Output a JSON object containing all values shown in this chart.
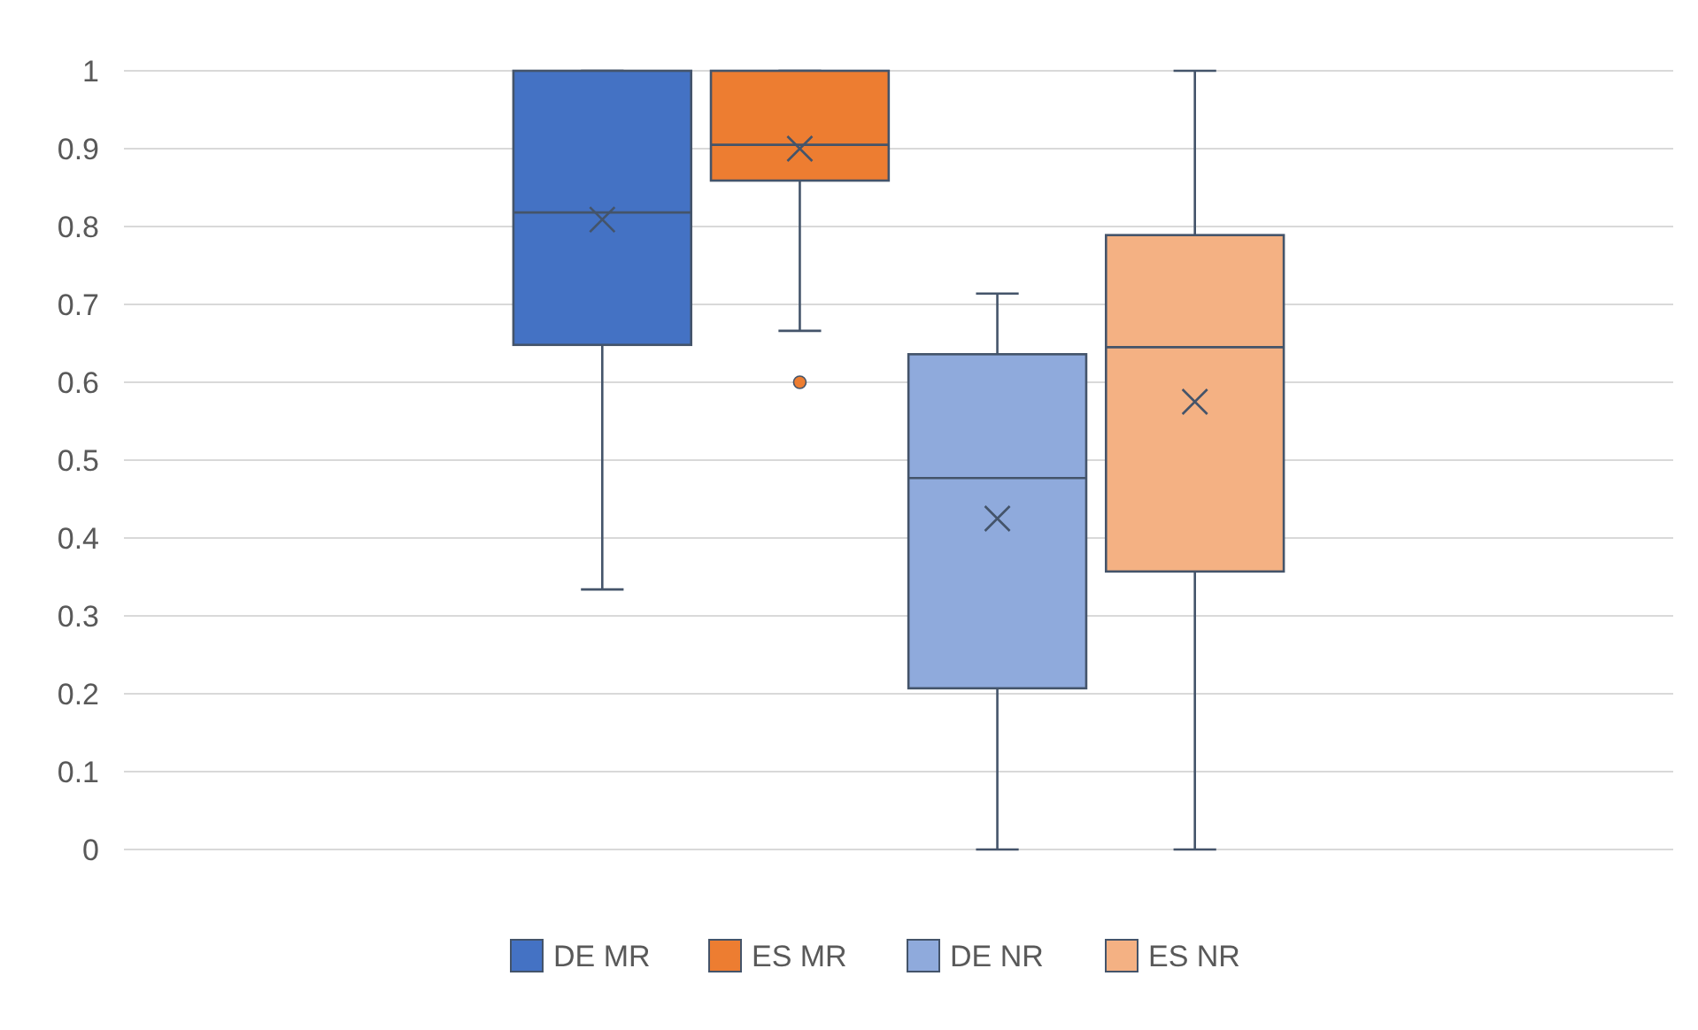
{
  "chart_data": {
    "type": "box",
    "categories": [
      null
    ],
    "ylim": [
      0,
      1
    ],
    "yticks": [
      0,
      0.1,
      0.2,
      0.3,
      0.4,
      0.5,
      0.6,
      0.7,
      0.8,
      0.9,
      1
    ],
    "grid": "y",
    "legend": "bottom",
    "marker": "cross",
    "series": [
      {
        "name": "DE MR",
        "color": "#4472c4",
        "boxes": [
          {
            "low": 0.334,
            "q1": 0.648,
            "median": 0.818,
            "q3": 1,
            "high": 1,
            "mean": 0.809
          }
        ]
      },
      {
        "name": "ES MR",
        "color": "#ed7d31",
        "boxes": [
          {
            "low": 0.666,
            "q1": 0.859,
            "median": 0.905,
            "q3": 1,
            "high": 1,
            "mean": 0.9,
            "outliers": [
              0.6
            ]
          }
        ]
      },
      {
        "name": "DE NR",
        "color": "#8faadc",
        "boxes": [
          {
            "low": 0,
            "q1": 0.207,
            "median": 0.477,
            "q3": 0.636,
            "high": 0.714,
            "mean": 0.425
          }
        ]
      },
      {
        "name": "ES NR",
        "color": "#f4b183",
        "boxes": [
          {
            "low": 0,
            "q1": 0.357,
            "median": 0.645,
            "q3": 0.789,
            "high": 1,
            "mean": 0.575
          }
        ]
      }
    ]
  }
}
